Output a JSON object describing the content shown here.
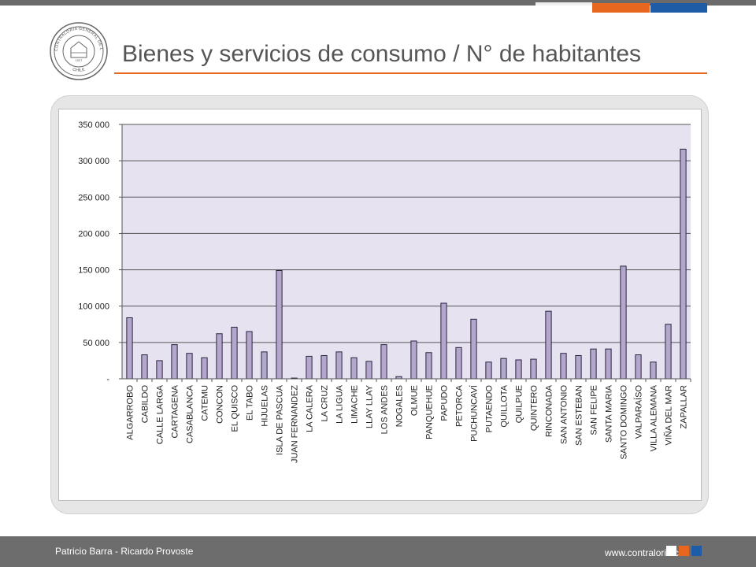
{
  "header": {
    "title": "Bienes y servicios de consumo / N° de habitantes",
    "seal_text": "CONTRALORIA GENERAL DE LA REPUBLICA",
    "seal_country": "CHILE",
    "seal_year": "1927"
  },
  "footer": {
    "authors": "Patricio Barra - Ricardo Provoste",
    "website": "www.contraloria.cl"
  },
  "colors": {
    "accent_orange": "#e8671f",
    "accent_blue": "#1f5ca8",
    "bar_fill": "#b3a8cc",
    "bar_stroke": "#2b2340",
    "plot_bg": "#e6e2f0"
  },
  "chart_data": {
    "type": "bar",
    "title": "",
    "xlabel": "",
    "ylabel": "",
    "ylim": [
      0,
      350000
    ],
    "y_ticks": [
      0,
      50000,
      100000,
      150000,
      200000,
      250000,
      300000,
      350000
    ],
    "y_tick_labels": [
      "-",
      "50 000",
      "100 000",
      "150 000",
      "200 000",
      "250 000",
      "300 000",
      "350 000"
    ],
    "grid": true,
    "categories": [
      "ALGARROBO",
      "CABILDO",
      "CALLE LARGA",
      "CARTAGENA",
      "CASABLANCA",
      "CATEMU",
      "CONCON",
      "EL QUISCO",
      "EL TABO",
      "HIJUELAS",
      "ISLA DE PASCUA",
      "JUAN FERNANDEZ",
      "LA CALERA",
      "LA CRUZ",
      "LA LIGUA",
      "LIMACHE",
      "LLAY LLAY",
      "LOS ANDES",
      "NOGALES",
      "OLMUE",
      "PANQUEHUE",
      "PAPUDO",
      "PETORCA",
      "PUCHUNCAVÍ",
      "PUTAENDO",
      "QUILLOTA",
      "QUILPUE",
      "QUINTERO",
      "RINCONADA",
      "SAN ANTONIO",
      "SAN ESTEBAN",
      "SAN FELIPE",
      "SANTA MARIA",
      "SANTO DOMINGO",
      "VALPARAÍSO",
      "VILLA ALEMANA",
      "VIÑA DEL MAR",
      "ZAPALLAR"
    ],
    "values": [
      84000,
      33000,
      25000,
      47000,
      35000,
      29000,
      62000,
      71000,
      65000,
      37000,
      149000,
      1000,
      31000,
      32000,
      37000,
      29000,
      24000,
      47000,
      3000,
      52000,
      36000,
      104000,
      43000,
      82000,
      23000,
      28000,
      26000,
      27000,
      93000,
      35000,
      32000,
      41000,
      41000,
      155000,
      33000,
      23000,
      75000,
      316000
    ]
  }
}
